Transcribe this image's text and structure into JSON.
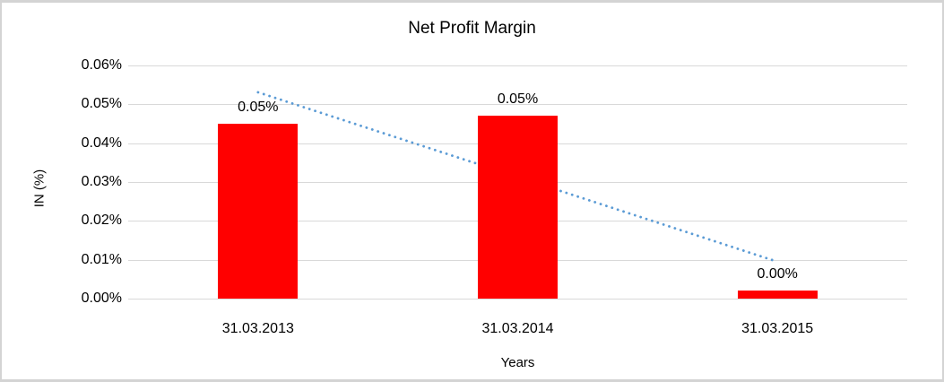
{
  "chart_data": {
    "type": "bar",
    "title": "Net Profit Margin",
    "xlabel": "Years",
    "ylabel": "IN (%)",
    "categories": [
      "31.03.2013",
      "31.03.2014",
      "31.03.2015"
    ],
    "series": [
      {
        "name": "Net Profit Margin",
        "unit": "%",
        "values": [
          0.045,
          0.047,
          0.002
        ]
      }
    ],
    "bar_labels": [
      "0.05%",
      "0.05%",
      "0.00%"
    ],
    "ylim": [
      0,
      0.06
    ],
    "ytick_step": 0.01,
    "ytick_labels": [
      "0.00%",
      "0.01%",
      "0.02%",
      "0.03%",
      "0.04%",
      "0.05%",
      "0.06%"
    ],
    "grid": true,
    "legend": "none",
    "bar_color": "#ff0000",
    "gridline_color": "#d9d9d9",
    "text_color": "#000000",
    "trendline": {
      "type": "linear",
      "style": "dotted",
      "color": "#5b9bd5",
      "start_value": 0.0531,
      "end_value": 0.0095
    }
  }
}
